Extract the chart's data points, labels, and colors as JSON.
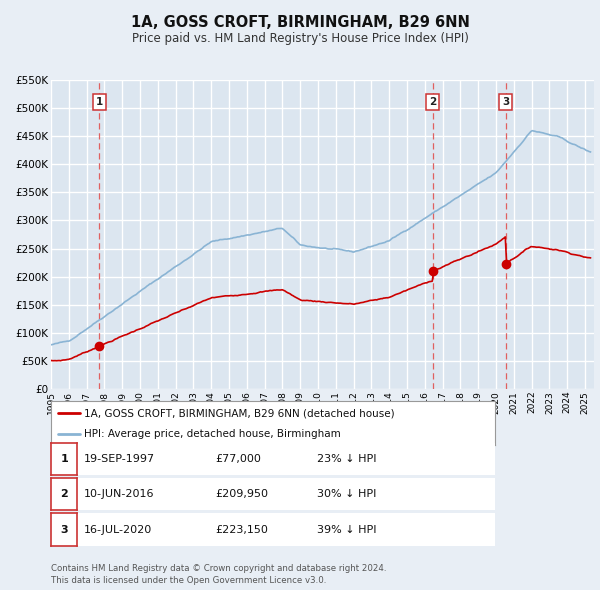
{
  "title": "1A, GOSS CROFT, BIRMINGHAM, B29 6NN",
  "subtitle": "Price paid vs. HM Land Registry's House Price Index (HPI)",
  "bg_color": "#e8eef5",
  "plot_bg_color": "#dce6f0",
  "grid_color": "#ffffff",
  "hpi_color": "#8ab4d4",
  "price_color": "#cc0000",
  "ylim": [
    0,
    550000
  ],
  "yticks": [
    0,
    50000,
    100000,
    150000,
    200000,
    250000,
    300000,
    350000,
    400000,
    450000,
    500000,
    550000
  ],
  "ytick_labels": [
    "£0",
    "£50K",
    "£100K",
    "£150K",
    "£200K",
    "£250K",
    "£300K",
    "£350K",
    "£400K",
    "£450K",
    "£500K",
    "£550K"
  ],
  "sale_prices": [
    77000,
    209950,
    223150
  ],
  "sale_labels": [
    "1",
    "2",
    "3"
  ],
  "vline_x": [
    1997.72,
    2016.44,
    2020.54
  ],
  "legend_entries": [
    "1A, GOSS CROFT, BIRMINGHAM, B29 6NN (detached house)",
    "HPI: Average price, detached house, Birmingham"
  ],
  "table_rows": [
    [
      "1",
      "19-SEP-1997",
      "£77,000",
      "23% ↓ HPI"
    ],
    [
      "2",
      "10-JUN-2016",
      "£209,950",
      "30% ↓ HPI"
    ],
    [
      "3",
      "16-JUL-2020",
      "£223,150",
      "39% ↓ HPI"
    ]
  ],
  "footnote1": "Contains HM Land Registry data © Crown copyright and database right 2024.",
  "footnote2": "This data is licensed under the Open Government Licence v3.0.",
  "xmin": 1995.0,
  "xmax": 2025.5
}
